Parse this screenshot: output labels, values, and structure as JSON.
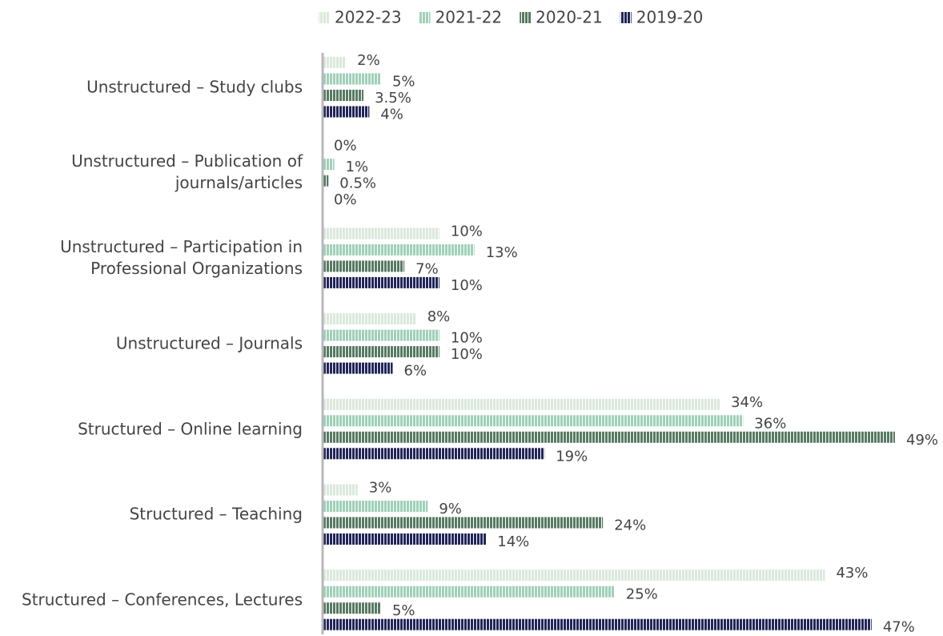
{
  "chart_data": {
    "type": "bar",
    "orientation": "horizontal",
    "categories": [
      "Unstructured – Study clubs",
      "Unstructured – Publication of\njournals/articles",
      "Unstructured – Participation in\nProfessional Organizations",
      "Unstructured – Journals",
      "Structured – Online learning",
      "Structured – Teaching",
      "Structured – Conferences, Lectures"
    ],
    "series": [
      {
        "name": "2022-23",
        "color": "#dbe8dc",
        "values": [
          2,
          0,
          10,
          8,
          34,
          3,
          43
        ],
        "value_labels": [
          "2%",
          "0%",
          "10%",
          "8%",
          "34%",
          "3%",
          "43%"
        ]
      },
      {
        "name": "2021-22",
        "color": "#9fd0b8",
        "values": [
          5,
          1,
          13,
          10,
          36,
          9,
          25
        ],
        "value_labels": [
          "5%",
          "1%",
          "13%",
          "10%",
          "36%",
          "9%",
          "25%"
        ]
      },
      {
        "name": "2020-21",
        "color": "#587a63",
        "values": [
          3.5,
          0.5,
          7,
          10,
          49,
          24,
          5
        ],
        "value_labels": [
          "3.5%",
          "0.5%",
          "7%",
          "10%",
          "49%",
          "24%",
          "5%"
        ]
      },
      {
        "name": "2019-20",
        "color": "#232659",
        "values": [
          4,
          0,
          10,
          6,
          19,
          14,
          47
        ],
        "value_labels": [
          "4%",
          "0%",
          "10%",
          "6%",
          "19%",
          "14%",
          "47%"
        ]
      }
    ],
    "legend": "top"
  }
}
